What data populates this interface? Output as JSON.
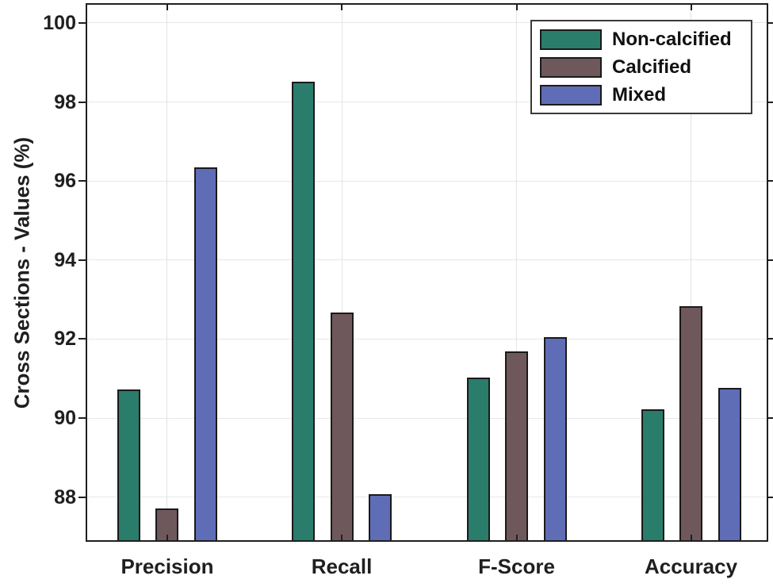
{
  "chart_data": {
    "type": "bar",
    "title": "",
    "xlabel": "",
    "ylabel": "Cross Sections - Values (%)",
    "categories": [
      "Precision",
      "Recall",
      "F-Score",
      "Accuracy"
    ],
    "series": [
      {
        "name": "Non-calcified",
        "color": "#2A7C6B",
        "values": [
          90.73,
          98.52,
          91.02,
          90.22
        ]
      },
      {
        "name": "Calcified",
        "color": "#6F585C",
        "values": [
          87.72,
          92.68,
          91.68,
          92.83
        ]
      },
      {
        "name": "Mixed",
        "color": "#5F6DB7",
        "values": [
          96.35,
          88.07,
          92.05,
          90.77
        ]
      }
    ],
    "ylim": [
      86.87,
      100.5
    ],
    "yticks": [
      88,
      90,
      92,
      94,
      96,
      98,
      100
    ],
    "ytick_labels": [
      "88",
      "90",
      "92",
      "94",
      "96",
      "98",
      "100"
    ],
    "grid": true,
    "legend_position": "top-right",
    "colors": {
      "axis": "#1f1f1f",
      "grid": "#e7e7e7",
      "bar_edge": "#1a1a1a",
      "text": "#1f1f1f",
      "background": "#ffffff"
    }
  }
}
